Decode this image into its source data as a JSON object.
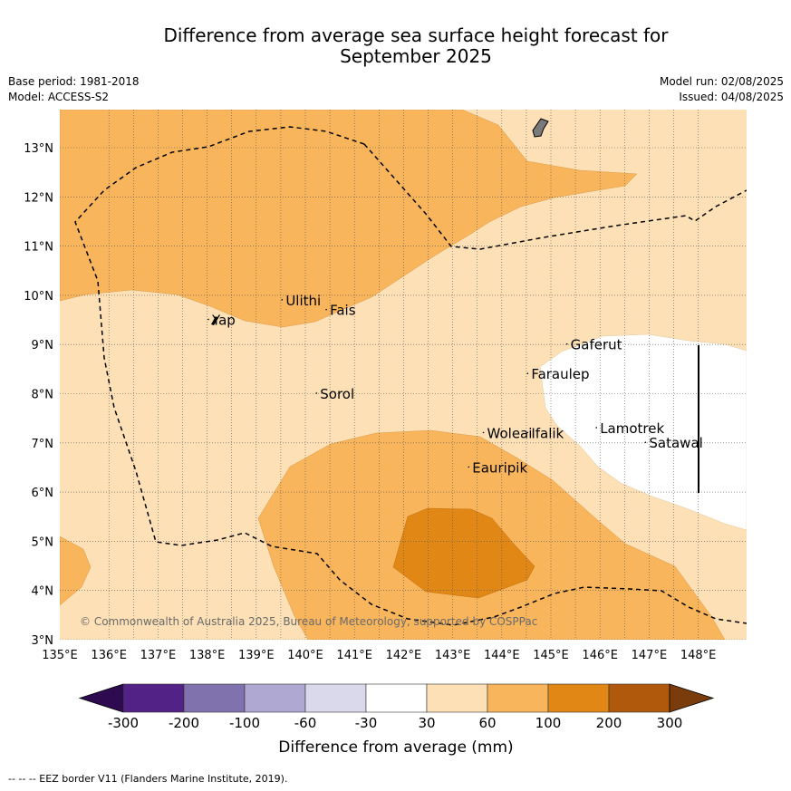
{
  "header": {
    "title_line1": "Difference from average sea surface height forecast for",
    "title_line2": "September 2025",
    "base_period": "Base period: 1981-2018",
    "model": "Model: ACCESS-S2",
    "model_run": "Model run: 02/08/2025",
    "issued": "Issued: 04/08/2025"
  },
  "map": {
    "lon_range": [
      135,
      149
    ],
    "lat_range": [
      3,
      13.8
    ],
    "lon_ticks": [
      "135°E",
      "136°E",
      "137°E",
      "138°E",
      "139°E",
      "140°E",
      "141°E",
      "142°E",
      "143°E",
      "144°E",
      "145°E",
      "146°E",
      "147°E",
      "148°E"
    ],
    "lat_ticks": [
      "3°N",
      "4°N",
      "5°N",
      "6°N",
      "7°N",
      "8°N",
      "9°N",
      "10°N",
      "11°N",
      "12°N",
      "13°N"
    ],
    "grid": true,
    "copyright": "© Commonwealth of Australia 2025, Bureau of Meteorology, supported by COSPPac",
    "places": [
      {
        "name": "Ulithi",
        "lon": 139.6,
        "lat": 9.8
      },
      {
        "name": "Fais",
        "lon": 140.5,
        "lat": 9.6
      },
      {
        "name": "Yap",
        "lon": 138.1,
        "lat": 9.4
      },
      {
        "name": "Gaferut",
        "lon": 145.4,
        "lat": 8.9
      },
      {
        "name": "Faraulep",
        "lon": 144.6,
        "lat": 8.3
      },
      {
        "name": "Sorol",
        "lon": 140.3,
        "lat": 7.9
      },
      {
        "name": "Woleai",
        "lon": 143.7,
        "lat": 7.1
      },
      {
        "name": "Ifalik",
        "lon": 144.6,
        "lat": 7.1
      },
      {
        "name": "Lamotrek",
        "lon": 146.0,
        "lat": 7.2
      },
      {
        "name": "Satawal",
        "lon": 147.0,
        "lat": 6.9
      },
      {
        "name": "Eauripik",
        "lon": 143.4,
        "lat": 6.4
      }
    ]
  },
  "colorbar": {
    "label": "Difference from average (mm)",
    "ticks": [
      "-300",
      "-200",
      "-100",
      "-60",
      "-30",
      "30",
      "60",
      "100",
      "200",
      "300"
    ],
    "colors": [
      "#2e0a50",
      "#532286",
      "#7f72ad",
      "#afa8d2",
      "#d9d9eb",
      "#ffffff",
      "#fde0b6",
      "#f9b55c",
      "#e08716",
      "#b0580b",
      "#7b3c0c"
    ]
  },
  "footnote": "-- -- -- EEZ border V11 (Flanders Marine Institute, 2019)."
}
